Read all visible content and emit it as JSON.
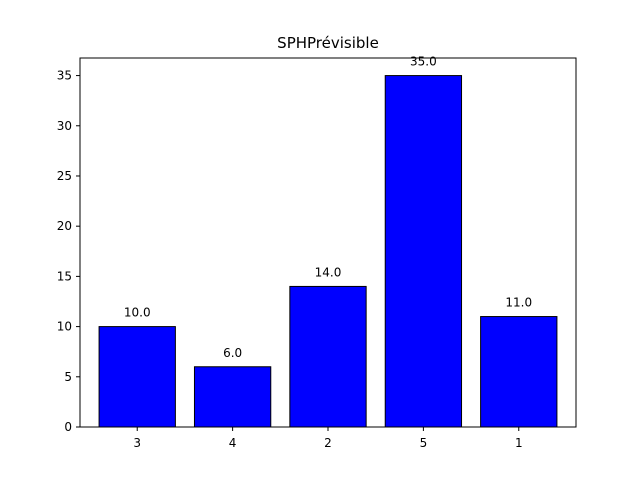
{
  "chart_data": {
    "type": "bar",
    "title": "SPHPrévisible",
    "xlabel": "",
    "ylabel": "",
    "categories": [
      "3",
      "4",
      "2",
      "5",
      "1"
    ],
    "values": [
      10.0,
      6.0,
      14.0,
      35.0,
      11.0
    ],
    "data_labels": [
      "10.0",
      "6.0",
      "14.0",
      "35.0",
      "11.0"
    ],
    "ylim": [
      0,
      36.75
    ],
    "yticks": [
      0,
      5,
      10,
      15,
      20,
      25,
      30,
      35
    ],
    "grid": false,
    "legend": "none",
    "bar_color": "#0000ff",
    "bar_edge_color": "#000000"
  }
}
